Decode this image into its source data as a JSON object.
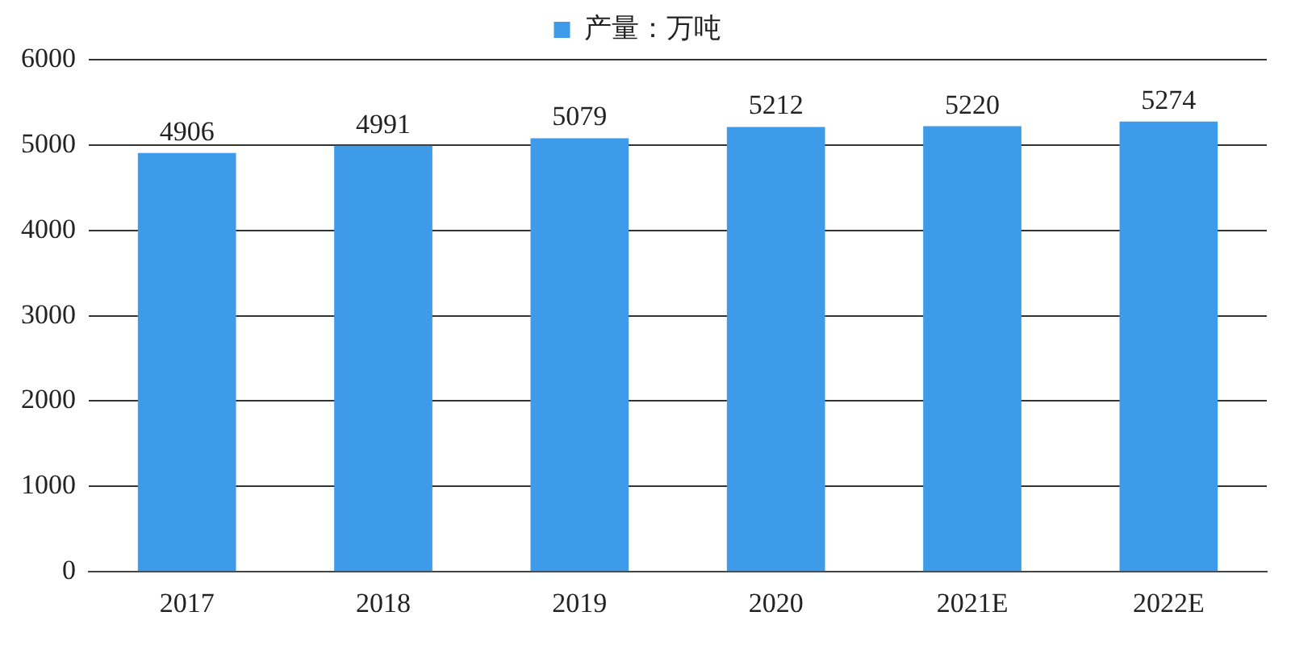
{
  "chart_data": {
    "type": "bar",
    "categories": [
      "2017",
      "2018",
      "2019",
      "2020",
      "2021E",
      "2022E"
    ],
    "series": [
      {
        "name": "产量：万吨",
        "color": "#3d9be9",
        "values": [
          4906,
          4991,
          5079,
          5212,
          5220,
          5274
        ]
      }
    ],
    "ylim": [
      0,
      6000
    ],
    "yticks": [
      0,
      1000,
      2000,
      3000,
      4000,
      5000,
      6000
    ],
    "grid": "y",
    "legend": "top",
    "data_labels": true
  }
}
